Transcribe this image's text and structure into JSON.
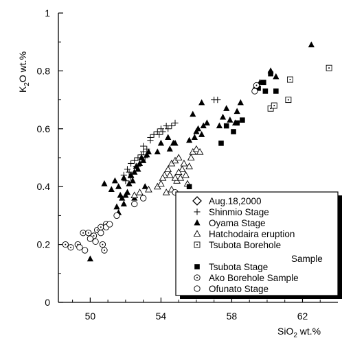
{
  "chart_data": {
    "type": "scatter",
    "xlabel": "SiO",
    "xlabel_sub": "2",
    "xlabel_unit": " wt.%",
    "ylabel": "K",
    "ylabel_sub": "2",
    "ylabel_unit": "O wt.%",
    "xlim": [
      48.2,
      64.0
    ],
    "ylim": [
      0,
      1.0
    ],
    "xticks": [
      50,
      54,
      58,
      62
    ],
    "yticks": [
      0,
      0.2,
      0.4,
      0.6,
      0.8,
      1
    ],
    "ytick_labels": [
      "0",
      "0.2",
      "0.4",
      "0.6",
      "0.8",
      "1"
    ],
    "xtick_labels": [
      "50",
      "54",
      "58",
      "62"
    ],
    "grid": false,
    "legend_position": "bottom-right",
    "series": [
      {
        "name": "Aug.18,2000",
        "marker": "diamond-open",
        "points": []
      },
      {
        "name": "Shinmio  Stage",
        "marker": "plus",
        "points": [
          [
            51.9,
            0.44
          ],
          [
            52.1,
            0.46
          ],
          [
            52.3,
            0.48
          ],
          [
            52.5,
            0.49
          ],
          [
            52.7,
            0.5
          ],
          [
            52.9,
            0.51
          ],
          [
            52.2,
            0.45
          ],
          [
            52.6,
            0.47
          ],
          [
            53.0,
            0.52
          ],
          [
            53.2,
            0.53
          ],
          [
            53.0,
            0.54
          ],
          [
            53.4,
            0.57
          ],
          [
            53.6,
            0.58
          ],
          [
            53.8,
            0.59
          ],
          [
            54.0,
            0.6
          ],
          [
            54.3,
            0.61
          ],
          [
            54.6,
            0.61
          ],
          [
            54.8,
            0.62
          ],
          [
            54.4,
            0.6
          ],
          [
            54.1,
            0.59
          ],
          [
            53.9,
            0.58
          ],
          [
            53.4,
            0.56
          ],
          [
            57.0,
            0.7
          ],
          [
            57.2,
            0.7
          ],
          [
            52.0,
            0.42
          ],
          [
            52.3,
            0.43
          ],
          [
            52.7,
            0.47
          ],
          [
            53.1,
            0.5
          ]
        ]
      },
      {
        "name": "Oyama  Stage",
        "marker": "triangle-filled",
        "points": [
          [
            50.0,
            0.15
          ],
          [
            50.8,
            0.41
          ],
          [
            51.2,
            0.39
          ],
          [
            51.4,
            0.42
          ],
          [
            51.6,
            0.4
          ],
          [
            51.8,
            0.36
          ],
          [
            51.5,
            0.33
          ],
          [
            51.6,
            0.31
          ],
          [
            51.9,
            0.34
          ],
          [
            52.0,
            0.37
          ],
          [
            52.1,
            0.38
          ],
          [
            52.2,
            0.41
          ],
          [
            52.3,
            0.44
          ],
          [
            52.4,
            0.42
          ],
          [
            52.5,
            0.45
          ],
          [
            52.6,
            0.47
          ],
          [
            52.7,
            0.46
          ],
          [
            52.8,
            0.48
          ],
          [
            52.9,
            0.5
          ],
          [
            53.0,
            0.49
          ],
          [
            53.2,
            0.51
          ],
          [
            53.3,
            0.52
          ],
          [
            53.1,
            0.4
          ],
          [
            52.8,
            0.38
          ],
          [
            52.5,
            0.36
          ],
          [
            51.9,
            0.43
          ],
          [
            51.7,
            0.37
          ],
          [
            54.5,
            0.53
          ],
          [
            54.7,
            0.55
          ],
          [
            55.6,
            0.56
          ],
          [
            55.9,
            0.57
          ],
          [
            56.1,
            0.6
          ],
          [
            56.4,
            0.61
          ],
          [
            56.6,
            0.62
          ],
          [
            56.3,
            0.58
          ],
          [
            56.0,
            0.59
          ],
          [
            57.5,
            0.64
          ],
          [
            57.7,
            0.67
          ],
          [
            58.3,
            0.66
          ],
          [
            58.5,
            0.69
          ],
          [
            58.2,
            0.62
          ],
          [
            57.9,
            0.63
          ],
          [
            59.3,
            0.74
          ],
          [
            59.6,
            0.76
          ],
          [
            60.2,
            0.8
          ],
          [
            60.5,
            0.78
          ],
          [
            62.5,
            0.89
          ],
          [
            56.3,
            0.69
          ],
          [
            55.8,
            0.65
          ],
          [
            54.4,
            0.57
          ],
          [
            54.8,
            0.55
          ],
          [
            57.3,
            0.61
          ],
          [
            54.0,
            0.55
          ],
          [
            53.8,
            0.52
          ]
        ]
      },
      {
        "name": "Hatchodaira  eruption",
        "marker": "triangle-open",
        "points": [
          [
            52.5,
            0.37
          ],
          [
            52.8,
            0.38
          ],
          [
            53.3,
            0.39
          ],
          [
            53.8,
            0.4
          ],
          [
            54.0,
            0.41
          ],
          [
            54.2,
            0.44
          ],
          [
            54.4,
            0.46
          ],
          [
            54.6,
            0.48
          ],
          [
            54.8,
            0.49
          ],
          [
            55.0,
            0.5
          ],
          [
            55.2,
            0.46
          ],
          [
            55.4,
            0.44
          ],
          [
            55.6,
            0.47
          ],
          [
            55.8,
            0.52
          ],
          [
            56.0,
            0.53
          ],
          [
            56.2,
            0.52
          ],
          [
            54.3,
            0.38
          ],
          [
            54.6,
            0.39
          ],
          [
            54.9,
            0.42
          ],
          [
            55.1,
            0.43
          ],
          [
            55.5,
            0.41
          ],
          [
            55.0,
            0.45
          ],
          [
            54.8,
            0.43
          ],
          [
            55.3,
            0.48
          ],
          [
            55.7,
            0.5
          ],
          [
            54.5,
            0.44
          ],
          [
            54.1,
            0.43
          ]
        ]
      },
      {
        "name": "Tsubota Borehole Sample",
        "name_line1": "Tsubota Borehole",
        "name_line2": "Sample",
        "marker": "square-dot",
        "points": [
          [
            60.2,
            0.67
          ],
          [
            60.4,
            0.68
          ],
          [
            61.2,
            0.7
          ],
          [
            61.3,
            0.77
          ],
          [
            63.5,
            0.81
          ]
        ]
      },
      {
        "name": "Tsubota  Stage",
        "marker": "square-filled",
        "points": [
          [
            55.6,
            0.4
          ],
          [
            57.4,
            0.55
          ],
          [
            58.1,
            0.59
          ],
          [
            58.3,
            0.62
          ],
          [
            57.7,
            0.61
          ],
          [
            58.6,
            0.63
          ],
          [
            59.5,
            0.74
          ],
          [
            59.8,
            0.76
          ],
          [
            60.2,
            0.79
          ],
          [
            60.5,
            0.73
          ],
          [
            59.9,
            0.73
          ]
        ]
      },
      {
        "name": "Ako Borehole Sample",
        "marker": "circle-dot",
        "points": [
          [
            48.6,
            0.2
          ],
          [
            48.9,
            0.19
          ],
          [
            49.3,
            0.2
          ],
          [
            49.6,
            0.24
          ],
          [
            49.9,
            0.24
          ],
          [
            50.2,
            0.23
          ],
          [
            50.4,
            0.25
          ],
          [
            50.6,
            0.26
          ],
          [
            50.9,
            0.27
          ],
          [
            50.7,
            0.2
          ],
          [
            50.8,
            0.18
          ],
          [
            59.4,
            0.75
          ]
        ]
      },
      {
        "name": "Ofunato  Stage",
        "marker": "circle-open",
        "points": [
          [
            49.4,
            0.19
          ],
          [
            49.7,
            0.18
          ],
          [
            50.0,
            0.22
          ],
          [
            50.3,
            0.21
          ],
          [
            50.6,
            0.24
          ],
          [
            50.9,
            0.26
          ],
          [
            51.1,
            0.27
          ],
          [
            51.5,
            0.3
          ],
          [
            52.5,
            0.34
          ],
          [
            53.0,
            0.36
          ],
          [
            55.2,
            0.37
          ],
          [
            54.8,
            0.38
          ],
          [
            59.3,
            0.73
          ]
        ]
      }
    ]
  }
}
